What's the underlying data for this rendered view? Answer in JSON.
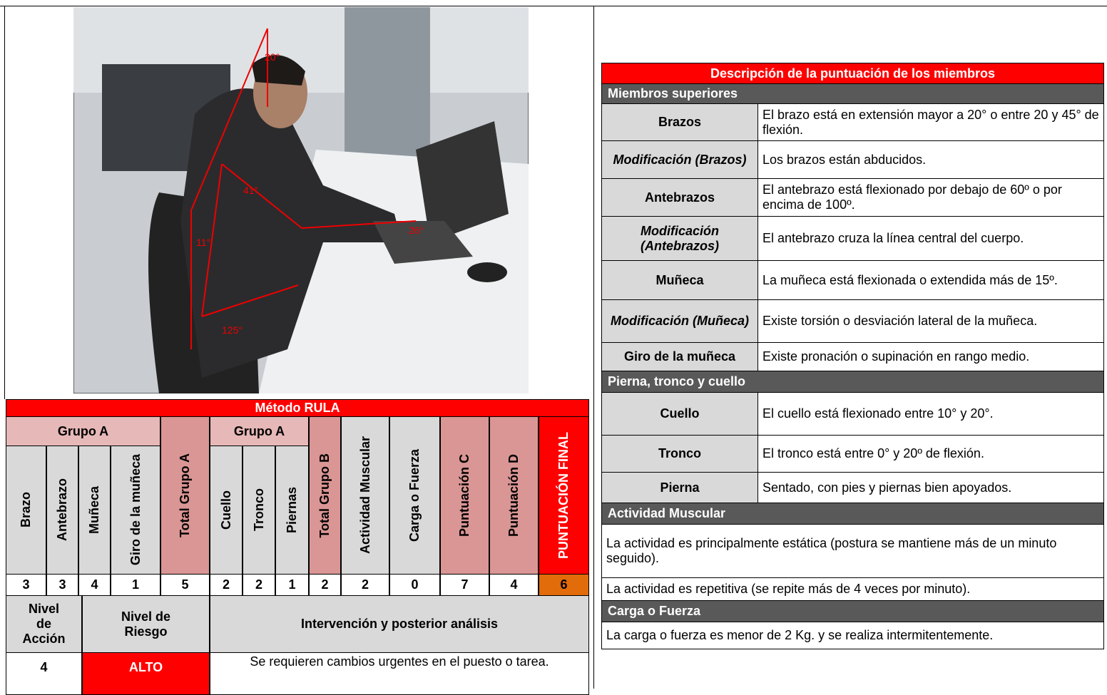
{
  "photo": {
    "angle_labels": [
      "20°",
      "41°",
      "11°",
      "125°",
      "26°"
    ]
  },
  "rula_table": {
    "title": "Método RULA",
    "group_headers": [
      "Grupo A",
      "Grupo A"
    ],
    "columns": [
      "Brazo",
      "Antebrazo",
      "Muñeca",
      "Giro de la muñeca",
      "Total Grupo A",
      "Cuello",
      "Tronco",
      "Piernas",
      "Total Grupo B",
      "Actividad Muscular",
      "Carga o Fuerza",
      "Puntuación C",
      "Puntuación D",
      "PUNTUACIÓN FINAL"
    ],
    "scores": [
      3,
      3,
      4,
      1,
      5,
      2,
      2,
      1,
      2,
      2,
      0,
      7,
      4,
      6
    ],
    "result_headers": [
      "Nivel de Acción",
      "Nivel de Riesgo",
      "Intervención y posterior análisis"
    ],
    "result": [
      4,
      "ALTO",
      "Se requieren cambios urgentes en el puesto o tarea."
    ]
  },
  "description_table": {
    "title": "Descripción de la puntuación de los miembros",
    "sections": [
      {
        "name": "Miembros superiores",
        "rows": [
          {
            "label": "Brazos",
            "text": "El brazo está en extensión mayor a 20° o entre 20 y 45° de flexión."
          },
          {
            "label": "Modificación (Brazos)",
            "text": "Los brazos están abducidos."
          },
          {
            "label": "Antebrazos",
            "text": "El antebrazo está flexionado por debajo de 60º o por encima de 100º."
          },
          {
            "label": "Modificación (Antebrazos)",
            "text": "El antebrazo cruza la línea central del cuerpo."
          },
          {
            "label": "Muñeca",
            "text": "La muñeca está flexionada o extendida más de 15º."
          },
          {
            "label": "Modificación (Muñeca)",
            "text": "Existe torsión o desviación lateral de la muñeca."
          },
          {
            "label": "Giro de la muñeca",
            "text": "Existe pronación o supinación en rango medio."
          }
        ]
      },
      {
        "name": "Pierna, tronco y cuello",
        "rows": [
          {
            "label": "Cuello",
            "text": "El cuello está flexionado entre 10° y 20°."
          },
          {
            "label": "Tronco",
            "text": "El tronco está entre 0° y 20º de flexión."
          },
          {
            "label": "Pierna",
            "text": "Sentado, con pies y piernas bien apoyados."
          }
        ]
      },
      {
        "name": "Actividad Muscular",
        "rows": [
          {
            "text": "La actividad es principalmente estática (postura se mantiene más de un minuto seguido)."
          },
          {
            "text": "La actividad es repetitiva (se repite más de 4 veces por minuto)."
          }
        ]
      },
      {
        "name": "Carga o Fuerza",
        "rows": [
          {
            "text": "La carga o fuerza es menor de 2 Kg. y se realiza intermitentemente."
          }
        ]
      }
    ]
  }
}
